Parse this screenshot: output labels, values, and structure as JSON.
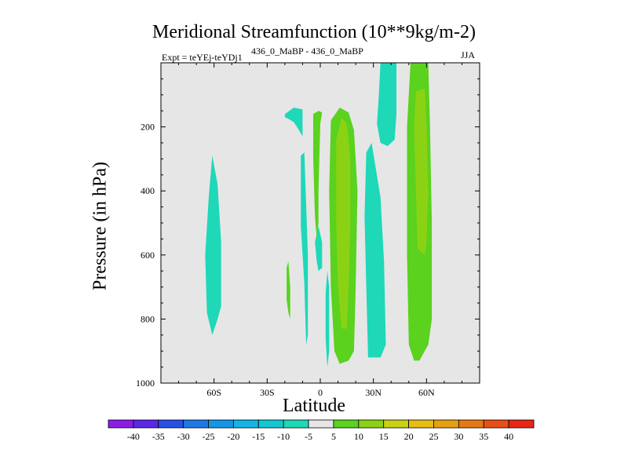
{
  "chart_data": {
    "type": "heatmap",
    "title": "Meridional Streamfunction (10**9kg/m-2)",
    "subtitle_left": "Expt = teYEj-teYDj1",
    "subtitle_center": "436_0_MaBP - 436_0_MaBP",
    "subtitle_right": "JJA",
    "xlabel": "Latitude",
    "ylabel": "Pressure (in hPa)",
    "xlim": [
      -90,
      90
    ],
    "ylim": [
      1000,
      0
    ],
    "xticks": [
      {
        "value": -60,
        "label": "60S"
      },
      {
        "value": -30,
        "label": "30S"
      },
      {
        "value": 0,
        "label": "0"
      },
      {
        "value": 30,
        "label": "30N"
      },
      {
        "value": 60,
        "label": "60N"
      }
    ],
    "yticks": [
      {
        "value": 200,
        "label": "200"
      },
      {
        "value": 400,
        "label": "400"
      },
      {
        "value": 600,
        "label": "600"
      },
      {
        "value": 800,
        "label": "800"
      },
      {
        "value": 1000,
        "label": "1000"
      }
    ],
    "background_color": "#e6e6e6",
    "colorbar": {
      "labels": [
        "-40",
        "-35",
        "-30",
        "-25",
        "-20",
        "-15",
        "-10",
        "-5",
        "5",
        "10",
        "15",
        "20",
        "25",
        "30",
        "35",
        "40"
      ],
      "colors": [
        "#8a1ee6",
        "#5a28e6",
        "#2850e6",
        "#1e78e6",
        "#1496e6",
        "#14b4e6",
        "#14c8d2",
        "#1ed8b8",
        "#e6e6e6",
        "#5ad21e",
        "#8cd214",
        "#c8d214",
        "#e6be14",
        "#e6a014",
        "#e67814",
        "#e65014",
        "#e62814"
      ]
    },
    "contours": [
      {
        "name": "neg-lat-minus60",
        "level": "-10 to -5",
        "color": "#1ed8b8",
        "points": [
          [
            -64,
            780
          ],
          [
            -65,
            600
          ],
          [
            -63,
            420
          ],
          [
            -61,
            290
          ],
          [
            -58,
            380
          ],
          [
            -56,
            560
          ],
          [
            -56,
            760
          ],
          [
            -58,
            800
          ],
          [
            -61,
            850
          ]
        ]
      },
      {
        "name": "neg-lat-minus15-upper",
        "level": "-10 to -5",
        "color": "#1ed8b8",
        "points": [
          [
            -20,
            160
          ],
          [
            -15,
            140
          ],
          [
            -10,
            145
          ],
          [
            -10,
            190
          ],
          [
            -10,
            230
          ],
          [
            -12,
            210
          ],
          [
            -15,
            185
          ],
          [
            -18,
            175
          ],
          [
            -20,
            170
          ]
        ]
      },
      {
        "name": "neg-lat-minus10-lower",
        "level": "-10 to -5",
        "color": "#1ed8b8",
        "points": [
          [
            -11,
            290
          ],
          [
            -9,
            280
          ],
          [
            -7,
            600
          ],
          [
            -7,
            850
          ],
          [
            -8,
            880
          ],
          [
            -9,
            690
          ],
          [
            -11,
            510
          ]
        ]
      },
      {
        "name": "neg-lat-0-lower",
        "level": "-10 to -5",
        "color": "#1ed8b8",
        "points": [
          [
            3,
            720
          ],
          [
            4,
            650
          ],
          [
            5,
            700
          ],
          [
            5,
            900
          ],
          [
            4,
            950
          ],
          [
            3,
            860
          ]
        ]
      },
      {
        "name": "neg-lat-0-mid",
        "level": "-10 to -5",
        "color": "#1ed8b8",
        "points": [
          [
            -3,
            560
          ],
          [
            -1,
            510
          ],
          [
            1,
            560
          ],
          [
            1,
            640
          ],
          [
            -1,
            650
          ],
          [
            -2,
            620
          ]
        ]
      },
      {
        "name": "neg-lat-25-lower",
        "level": "-10 to -5",
        "color": "#1ed8b8",
        "points": [
          [
            26,
            280
          ],
          [
            29,
            250
          ],
          [
            34,
            420
          ],
          [
            36,
            620
          ],
          [
            37,
            880
          ],
          [
            34,
            920
          ],
          [
            27,
            920
          ],
          [
            26,
            700
          ],
          [
            25,
            480
          ]
        ]
      },
      {
        "name": "neg-lat-38-upper",
        "level": "-10 to -5",
        "color": "#1ed8b8",
        "points": [
          [
            34,
            0
          ],
          [
            43,
            0
          ],
          [
            43,
            160
          ],
          [
            42,
            240
          ],
          [
            38,
            260
          ],
          [
            34,
            250
          ],
          [
            32,
            190
          ],
          [
            33,
            110
          ]
        ]
      },
      {
        "name": "pos-lat-minus18-small",
        "level": "5 to 10",
        "color": "#5ad21e",
        "points": [
          [
            -19,
            640
          ],
          [
            -18,
            620
          ],
          [
            -17,
            700
          ],
          [
            -17,
            800
          ],
          [
            -18,
            780
          ],
          [
            -19,
            740
          ]
        ]
      },
      {
        "name": "pos-lat-0",
        "level": "5 to 10",
        "color": "#5ad21e",
        "points": [
          [
            -4,
            160
          ],
          [
            -1,
            150
          ],
          [
            1,
            155
          ],
          [
            0,
            190
          ],
          [
            -1,
            400
          ],
          [
            -1,
            500
          ],
          [
            -2,
            550
          ],
          [
            -3,
            480
          ],
          [
            -4,
            300
          ]
        ]
      },
      {
        "name": "pos-lat-10",
        "level": "5 to 10",
        "color": "#5ad21e",
        "points": [
          [
            6,
            180
          ],
          [
            11,
            140
          ],
          [
            16,
            155
          ],
          [
            19,
            210
          ],
          [
            21,
            400
          ],
          [
            20,
            700
          ],
          [
            19,
            900
          ],
          [
            16,
            930
          ],
          [
            11,
            940
          ],
          [
            8,
            900
          ],
          [
            6,
            700
          ],
          [
            5,
            400
          ]
        ]
      },
      {
        "name": "pos-lat-55",
        "level": "5 to 10",
        "color": "#5ad21e",
        "points": [
          [
            51,
            0
          ],
          [
            61,
            0
          ],
          [
            62,
            200
          ],
          [
            63,
            500
          ],
          [
            63,
            800
          ],
          [
            61,
            880
          ],
          [
            56,
            930
          ],
          [
            53,
            930
          ],
          [
            50,
            880
          ],
          [
            49,
            600
          ],
          [
            49,
            400
          ],
          [
            49,
            200
          ]
        ]
      },
      {
        "name": "pos-lat-10-inner",
        "level": "10 to 15",
        "color": "#8cd214",
        "points": [
          [
            9,
            240
          ],
          [
            12,
            170
          ],
          [
            15,
            190
          ],
          [
            17,
            300
          ],
          [
            17,
            500
          ],
          [
            16,
            700
          ],
          [
            15,
            830
          ],
          [
            12,
            830
          ],
          [
            10,
            700
          ],
          [
            9,
            500
          ]
        ]
      },
      {
        "name": "pos-lat-55-inner",
        "level": "10 to 15",
        "color": "#8cd214",
        "points": [
          [
            54,
            90
          ],
          [
            59,
            80
          ],
          [
            60,
            200
          ],
          [
            61,
            400
          ],
          [
            60,
            560
          ],
          [
            59,
            600
          ],
          [
            55,
            580
          ],
          [
            54,
            400
          ],
          [
            53,
            200
          ]
        ]
      }
    ]
  }
}
